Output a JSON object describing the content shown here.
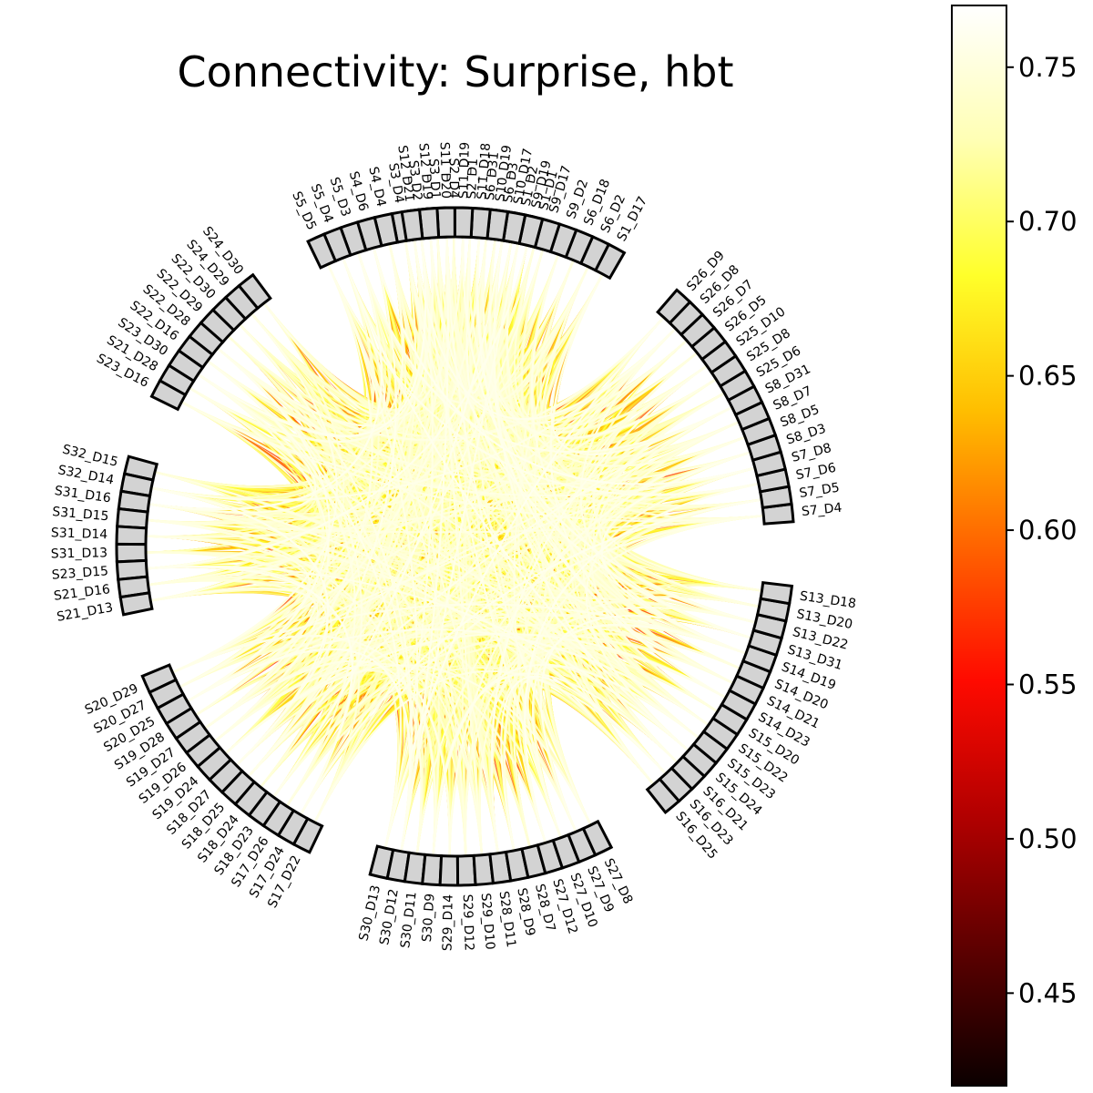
{
  "title": "Connectivity: Surprise, hbt",
  "colorbar": {
    "colormap": "hot",
    "vmin": 0.42,
    "vmax": 0.77,
    "ticks": [
      0.45,
      0.5,
      0.55,
      0.6,
      0.65,
      0.7,
      0.75
    ],
    "tick_labels": [
      "0.45",
      "0.50",
      "0.55",
      "0.60",
      "0.65",
      "0.70",
      "0.75"
    ],
    "stops": [
      "#0b0000",
      "#5c0000",
      "#b20000",
      "#ff0a00",
      "#ff6400",
      "#ffbe00",
      "#ffff2a",
      "#ffffb4",
      "#ffffff"
    ]
  },
  "groups": [
    {
      "name": "group-top-left",
      "nodes": [
        "S1_D1",
        "S1_D2",
        "S6_D3",
        "S6_D31",
        "S2_D1",
        "S2_D4",
        "S3_D1",
        "S3_D2",
        "S3_D4",
        "S4_D4",
        "S4_D6",
        "S5_D3",
        "S5_D4",
        "S5_D5"
      ]
    },
    {
      "name": "group-top",
      "nodes": [
        "S24_D30",
        "S24_D29",
        "S22_D30",
        "S22_D29",
        "S22_D28",
        "S22_D16",
        "S23_D30",
        "S21_D28",
        "S23_D16"
      ]
    },
    {
      "name": "group-top-right",
      "nodes": [
        "S32_D15",
        "S32_D14",
        "S31_D16",
        "S31_D15",
        "S31_D14",
        "S31_D13",
        "S23_D15",
        "S21_D16",
        "S21_D13"
      ]
    },
    {
      "name": "group-right",
      "nodes": [
        "S20_D29",
        "S20_D27",
        "S20_D25",
        "S19_D28",
        "S19_D27",
        "S19_D26",
        "S19_D24",
        "S18_D27",
        "S18_D25",
        "S18_D24",
        "S18_D23",
        "S17_D26",
        "S17_D24",
        "S17_D22"
      ]
    },
    {
      "name": "group-bottom-right",
      "nodes": [
        "S30_D13",
        "S30_D12",
        "S30_D11",
        "S30_D9",
        "S29_D14",
        "S29_D12",
        "S29_D10",
        "S28_D11",
        "S28_D9",
        "S28_D7",
        "S27_D12",
        "S27_D10",
        "S27_D9",
        "S27_D8"
      ]
    },
    {
      "name": "group-bottom",
      "nodes": [
        "S16_D25",
        "S16_D23",
        "S16_D21",
        "S15_D24",
        "S15_D23",
        "S15_D22",
        "S15_D20",
        "S14_D23",
        "S14_D21",
        "S14_D20",
        "S14_D19",
        "S13_D31",
        "S13_D22",
        "S13_D20",
        "S13_D18"
      ]
    },
    {
      "name": "group-bottom-left",
      "nodes": [
        "S7_D4",
        "S7_D5",
        "S7_D6",
        "S7_D8",
        "S8_D3",
        "S8_D5",
        "S8_D7",
        "S8_D31",
        "S25_D6",
        "S25_D8",
        "S25_D10",
        "S26_D5",
        "S26_D7",
        "S26_D8",
        "S26_D9"
      ]
    },
    {
      "name": "group-left",
      "nodes": [
        "S1_D17",
        "S6_D2",
        "S6_D18",
        "S9_D2",
        "S9_D17",
        "S9_D19",
        "S10_D17",
        "S10_D19",
        "S11_D18",
        "S11_D19",
        "S11_D20",
        "S12_D19",
        "S12_D21"
      ]
    }
  ]
}
